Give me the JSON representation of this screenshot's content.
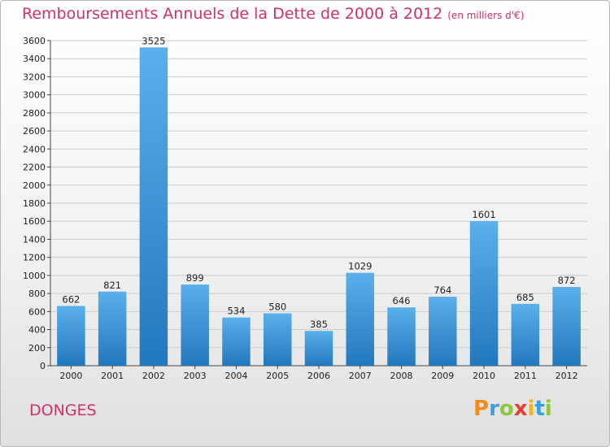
{
  "title": "Remboursements Annuels de la Dette de 2000 à 2012",
  "subtitle": "(en milliers d'€)",
  "commune": "DONGES",
  "logo": {
    "text": "Proxiti",
    "letters": [
      {
        "ch": "P",
        "color": "#f28c1e"
      },
      {
        "ch": "r",
        "color": "#3aa0db"
      },
      {
        "ch": "o",
        "color": "#8dc63f"
      },
      {
        "ch": "x",
        "color": "#e8402f"
      },
      {
        "ch": "i",
        "color": "#f6b01c"
      },
      {
        "ch": "t",
        "color": "#3aa0db"
      },
      {
        "ch": "i",
        "color": "#8dc63f"
      }
    ]
  },
  "colors": {
    "title": "#d1306b",
    "bar_top": "#5ab0ea",
    "bar_bottom": "#2278bd",
    "grid": "#cccccc"
  },
  "chart_data": {
    "type": "bar",
    "title": "Remboursements Annuels de la Dette de 2000 à 2012",
    "subtitle": "(en milliers d'€)",
    "xlabel": "",
    "ylabel": "",
    "categories": [
      "2000",
      "2001",
      "2002",
      "2003",
      "2004",
      "2005",
      "2006",
      "2007",
      "2008",
      "2009",
      "2010",
      "2011",
      "2012"
    ],
    "values": [
      662,
      821,
      3525,
      899,
      534,
      580,
      385,
      1029,
      646,
      764,
      1601,
      685,
      872
    ],
    "ylim": [
      0,
      3600
    ],
    "yticks": [
      0,
      200,
      400,
      600,
      800,
      1000,
      1200,
      1400,
      1600,
      1800,
      2000,
      2200,
      2400,
      2600,
      2800,
      3000,
      3200,
      3400,
      3600
    ],
    "grid": true,
    "legend": "none",
    "data_labels": true
  }
}
